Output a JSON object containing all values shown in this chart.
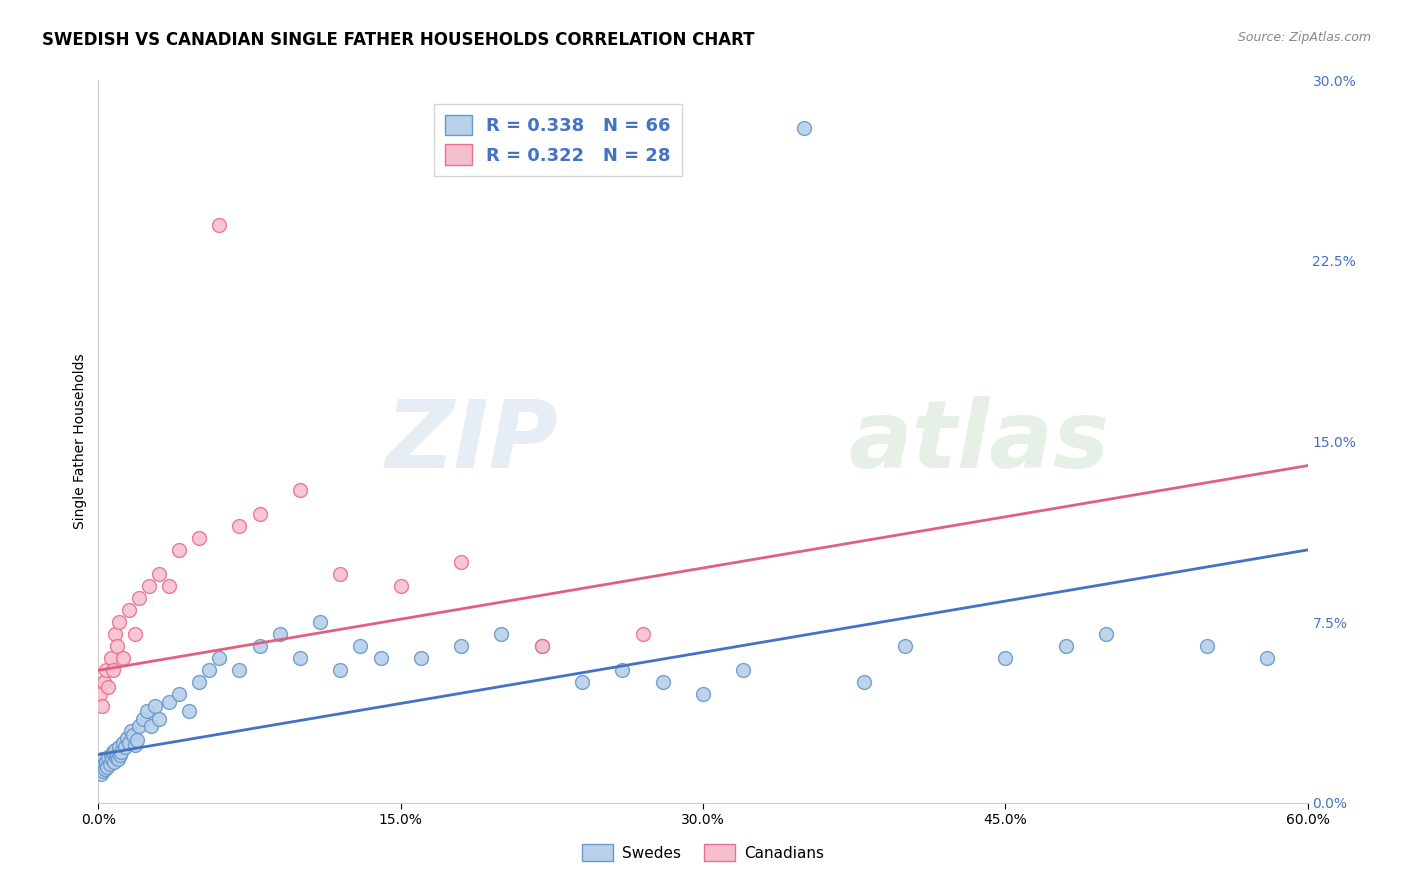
{
  "title": "SWEDISH VS CANADIAN SINGLE FATHER HOUSEHOLDS CORRELATION CHART",
  "source": "Source: ZipAtlas.com",
  "ylabel": "Single Father Households",
  "xlim": [
    0.0,
    60.0
  ],
  "ylim": [
    0.0,
    30.0
  ],
  "xticks": [
    0.0,
    15.0,
    30.0,
    45.0,
    60.0
  ],
  "yticks": [
    0.0,
    7.5,
    15.0,
    22.5,
    30.0
  ],
  "blue_face": "#b8d0e8",
  "blue_edge": "#6699cc",
  "pink_face": "#f5c0ce",
  "pink_edge": "#e87090",
  "line_blue": "#4472c4",
  "line_pink": "#e06080",
  "tick_color_right": "#4472c4",
  "legend_text_color": "#4472c4",
  "R_swedish": 0.338,
  "N_swedish": 66,
  "R_canadian": 0.322,
  "N_canadian": 28,
  "swedes_x": [
    0.1,
    0.15,
    0.2,
    0.25,
    0.3,
    0.35,
    0.4,
    0.45,
    0.5,
    0.55,
    0.6,
    0.65,
    0.7,
    0.75,
    0.8,
    0.85,
    0.9,
    0.95,
    1.0,
    1.05,
    1.1,
    1.2,
    1.3,
    1.4,
    1.5,
    1.6,
    1.7,
    1.8,
    1.9,
    2.0,
    2.2,
    2.4,
    2.6,
    2.8,
    3.0,
    3.5,
    4.0,
    4.5,
    5.0,
    5.5,
    6.0,
    7.0,
    8.0,
    9.0,
    10.0,
    11.0,
    12.0,
    13.0,
    14.0,
    16.0,
    18.0,
    20.0,
    22.0,
    24.0,
    26.0,
    28.0,
    30.0,
    32.0,
    35.0,
    38.0,
    40.0,
    45.0,
    48.0,
    50.0,
    55.0,
    58.0
  ],
  "swedes_y": [
    1.5,
    1.2,
    1.8,
    1.3,
    1.6,
    1.4,
    1.7,
    1.5,
    1.9,
    1.6,
    2.0,
    1.8,
    2.1,
    1.7,
    2.2,
    1.9,
    2.0,
    1.8,
    2.3,
    2.0,
    2.1,
    2.5,
    2.3,
    2.7,
    2.5,
    3.0,
    2.8,
    2.4,
    2.6,
    3.2,
    3.5,
    3.8,
    3.2,
    4.0,
    3.5,
    4.2,
    4.5,
    3.8,
    5.0,
    5.5,
    6.0,
    5.5,
    6.5,
    7.0,
    6.0,
    7.5,
    5.5,
    6.5,
    6.0,
    6.0,
    6.5,
    7.0,
    6.5,
    5.0,
    5.5,
    5.0,
    4.5,
    5.5,
    28.0,
    5.0,
    6.5,
    6.0,
    6.5,
    7.0,
    6.5,
    6.0
  ],
  "canadians_x": [
    0.1,
    0.2,
    0.3,
    0.4,
    0.5,
    0.6,
    0.7,
    0.8,
    0.9,
    1.0,
    1.2,
    1.5,
    1.8,
    2.0,
    2.5,
    3.0,
    3.5,
    4.0,
    5.0,
    6.0,
    7.0,
    8.0,
    10.0,
    12.0,
    15.0,
    18.0,
    22.0,
    27.0
  ],
  "canadians_y": [
    4.5,
    4.0,
    5.0,
    5.5,
    4.8,
    6.0,
    5.5,
    7.0,
    6.5,
    7.5,
    6.0,
    8.0,
    7.0,
    8.5,
    9.0,
    9.5,
    9.0,
    10.5,
    11.0,
    24.0,
    11.5,
    12.0,
    13.0,
    9.5,
    9.0,
    10.0,
    6.5,
    7.0
  ],
  "blue_trend_x0": 0.0,
  "blue_trend_y0": 2.0,
  "blue_trend_x1": 60.0,
  "blue_trend_y1": 10.5,
  "pink_trend_x0": 0.0,
  "pink_trend_y0": 5.5,
  "pink_trend_x1": 60.0,
  "pink_trend_y1": 14.0,
  "watermark1": "ZIP",
  "watermark2": "atlas",
  "background_color": "#ffffff",
  "grid_color": "#cccccc",
  "title_fontsize": 12,
  "tick_fontsize": 10,
  "source_fontsize": 9
}
